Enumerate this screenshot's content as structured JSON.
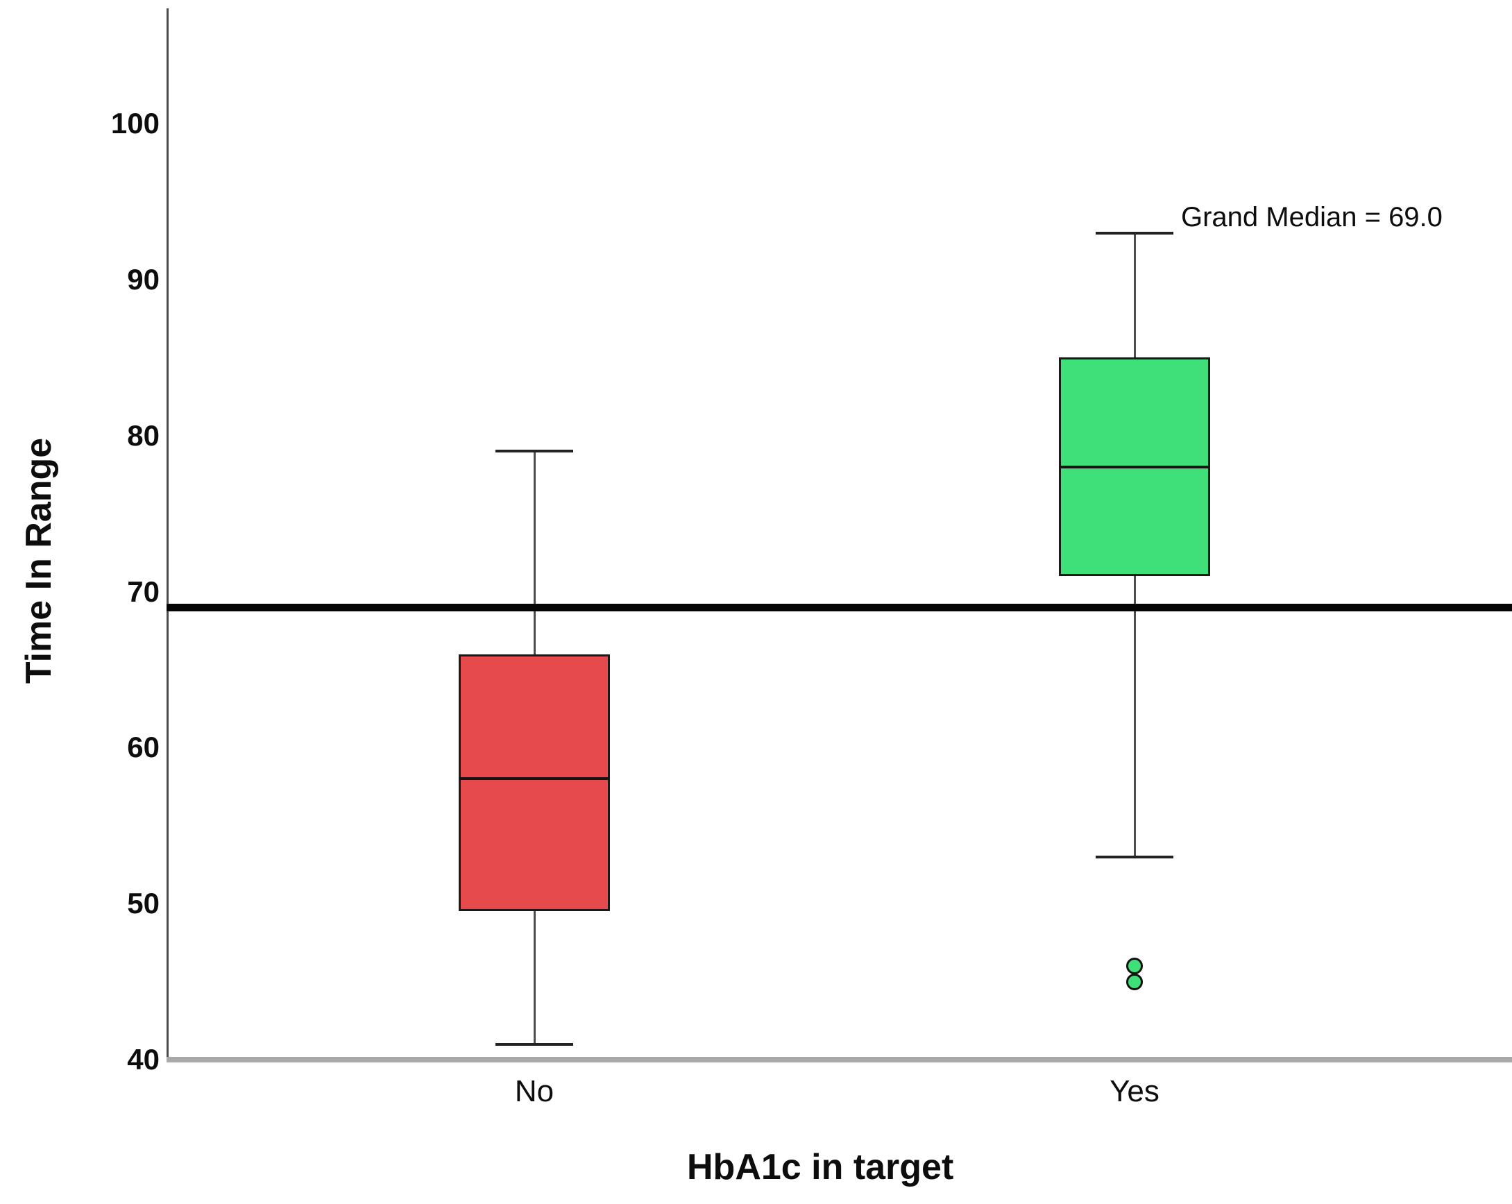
{
  "chart_data": {
    "type": "boxplot",
    "title": "",
    "xlabel": "HbA1c in target",
    "ylabel": "Time In Range",
    "y_ticks": [
      40,
      50,
      60,
      70,
      80,
      90,
      100
    ],
    "ylim": [
      40,
      107.5
    ],
    "grid": false,
    "legend": false,
    "grand_median": {
      "value": 69.0,
      "label": "Grand Median = 69.0",
      "line_color": "#050505"
    },
    "categories": [
      "No",
      "Yes"
    ],
    "groups": [
      {
        "category": "No",
        "fill_color": "#E64A4C",
        "whisker_min": 41,
        "q1": 49.5,
        "median": 58,
        "q3": 66,
        "whisker_max": 79,
        "outliers": []
      },
      {
        "category": "Yes",
        "fill_color": "#3FE07A",
        "whisker_min": 53,
        "q1": 71,
        "median": 78,
        "q3": 85,
        "whisker_max": 93,
        "outliers": [
          46,
          45
        ]
      }
    ]
  }
}
